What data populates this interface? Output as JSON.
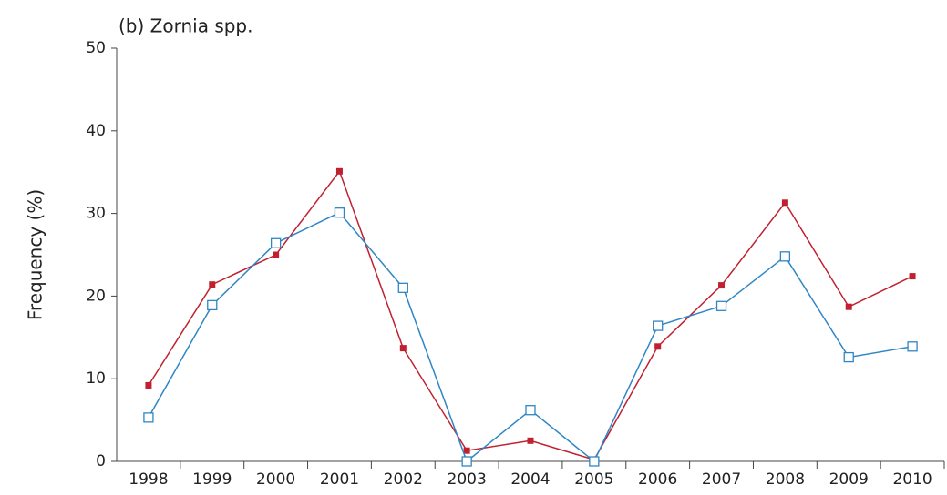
{
  "chart_data": {
    "type": "line",
    "title": "(b) Zornia spp.",
    "y_label": "Frequency (%)",
    "categories": [
      "1998",
      "1999",
      "2000",
      "2001",
      "2002",
      "2003",
      "2004",
      "2005",
      "2006",
      "2007",
      "2008",
      "2009",
      "2010"
    ],
    "series": [
      {
        "color": "#c0202f",
        "marker": "filled-square",
        "values": [
          9.2,
          21.4,
          25,
          35.1,
          13.7,
          1.3,
          2.5,
          0.2,
          13.9,
          21.3,
          31.3,
          18.7,
          22.4
        ]
      },
      {
        "color": "#2f86c5",
        "marker": "open-square",
        "values": [
          5.3,
          18.9,
          26.4,
          30.1,
          21.0,
          0,
          6.2,
          0,
          16.4,
          18.8,
          24.8,
          12.6,
          13.9
        ]
      }
    ],
    "ylim": [
      0,
      50
    ],
    "yticks": [
      0,
      10,
      20,
      30,
      40,
      50
    ],
    "grid": false
  }
}
